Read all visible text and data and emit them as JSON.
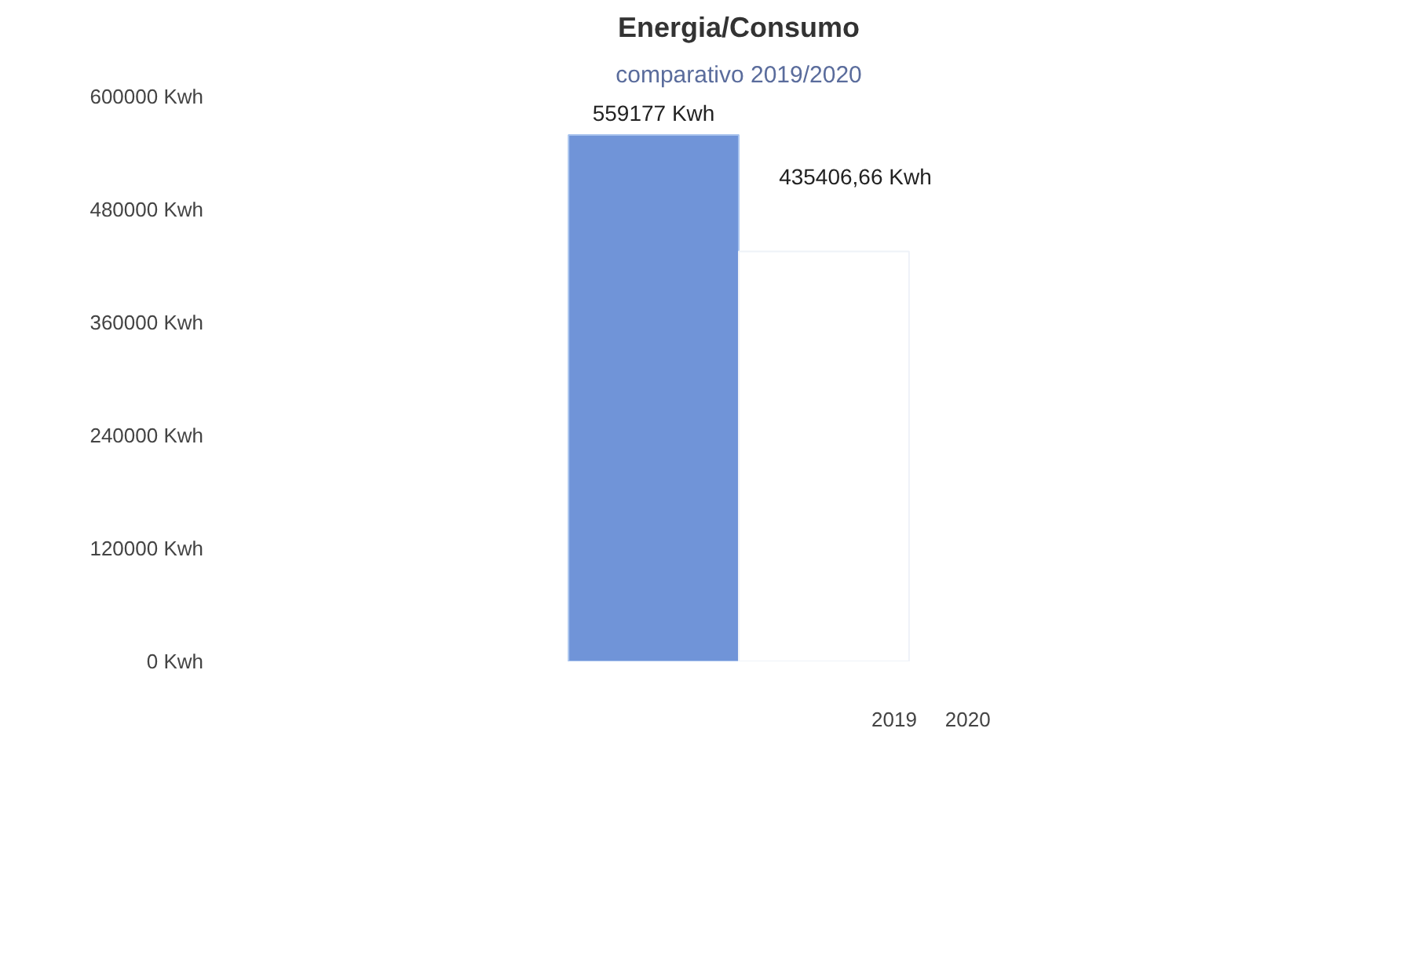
{
  "chart_data": {
    "type": "bar",
    "title": "Energia/Consumo",
    "subtitle": "comparativo 2019/2020",
    "categories": [
      null
    ],
    "series": [
      {
        "name": "2019",
        "color": "#7094d8",
        "values": [
          559177
        ],
        "value_labels": [
          "559177 Kwh"
        ]
      },
      {
        "name": "2020",
        "color": "#ffffff",
        "values": [
          435406.66
        ],
        "value_labels": [
          "435406,66 Kwh"
        ]
      }
    ],
    "ylim": [
      0,
      600000
    ],
    "yticks": [
      {
        "value": 0,
        "label": "0 Kwh"
      },
      {
        "value": 120000,
        "label": "120000 Kwh"
      },
      {
        "value": 240000,
        "label": "240000 Kwh"
      },
      {
        "value": 360000,
        "label": "360000 Kwh"
      },
      {
        "value": 480000,
        "label": "480000 Kwh"
      },
      {
        "value": 600000,
        "label": "600000 Kwh"
      }
    ],
    "legend": "bottom",
    "grid": false
  }
}
